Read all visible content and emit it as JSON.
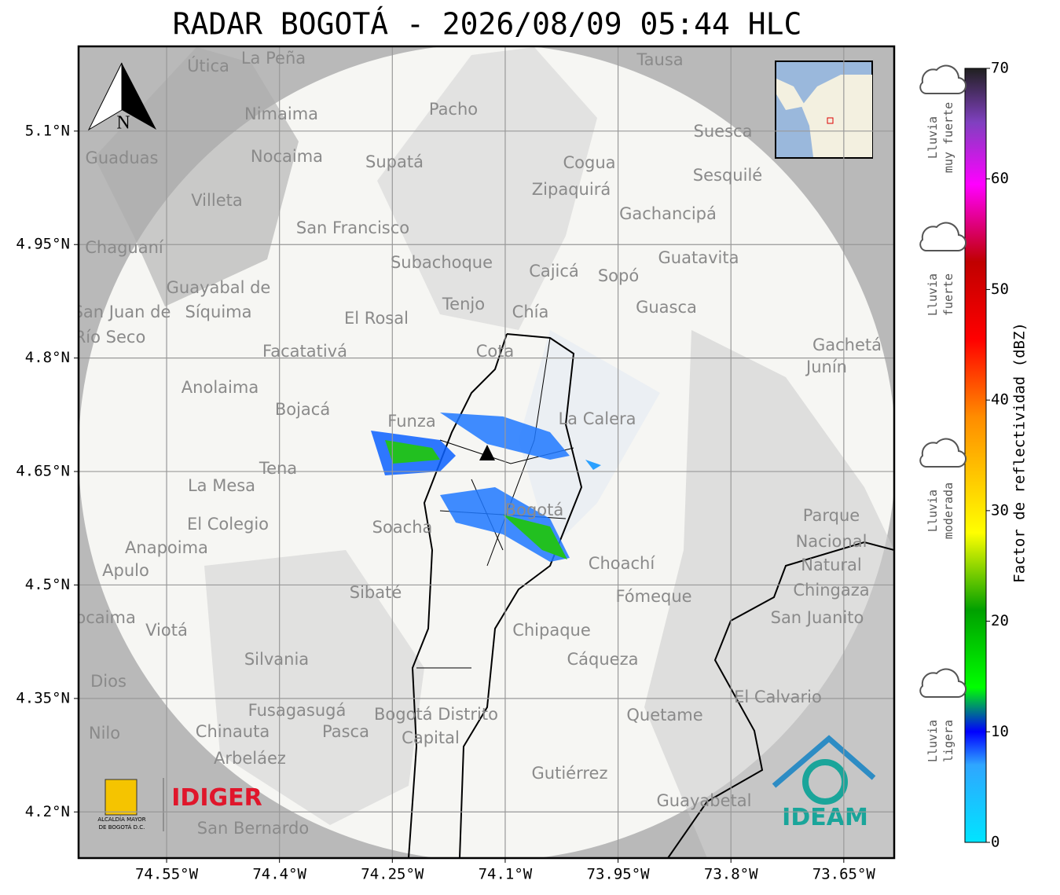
{
  "title": "RADAR BOGOTÁ - 2026/08/09 05:44 HLC",
  "map": {
    "lonlim": [
      -74.667,
      -73.583
    ],
    "latlim": [
      4.139,
      5.212
    ],
    "lon_ticks": [
      {
        "value": -74.55,
        "label": "74.55°W"
      },
      {
        "value": -74.4,
        "label": "74.4°W"
      },
      {
        "value": -74.25,
        "label": "74.25°W"
      },
      {
        "value": -74.1,
        "label": "74.1°W"
      },
      {
        "value": -73.95,
        "label": "73.95°W"
      },
      {
        "value": -73.8,
        "label": "73.8°W"
      },
      {
        "value": -73.65,
        "label": "73.65°W"
      }
    ],
    "lat_ticks": [
      {
        "value": 5.1,
        "label": "5.1°N"
      },
      {
        "value": 4.95,
        "label": "4.95°N"
      },
      {
        "value": 4.8,
        "label": "4.8°N"
      },
      {
        "value": 4.65,
        "label": "4.65°N"
      },
      {
        "value": 4.5,
        "label": "4.5°N"
      },
      {
        "value": 4.35,
        "label": "4.35°N"
      },
      {
        "value": 4.2,
        "label": "4.2°N"
      }
    ],
    "north": "N",
    "places": [
      "La Peña",
      "Útica",
      "Tausa",
      "Pacho",
      "Nimaima",
      "Guaduas",
      "Nocaima",
      "Supatá",
      "Suesca",
      "Cogua",
      "Sesquilé",
      "Zipaquirá",
      "Villeta",
      "Gachancipá",
      "San Francisco",
      "Chaguaní",
      "Guatavita",
      "Subachoque",
      "Cajicá",
      "Sopó",
      "Guayabal de",
      "Síquima",
      "Tenjo",
      "Chía",
      "Guasca",
      "San Juan de",
      "Río Seco",
      "El Rosal",
      "Gachetá",
      "Junín",
      "Facatativá",
      "Cota",
      "Anolaima",
      "Bojacá",
      "Funza",
      "La Calera",
      "Tena",
      "La Mesa",
      "Parque",
      "Nacional",
      "Natural",
      "Chingaza",
      "El Colegio",
      "Soacha",
      "Bogotá",
      "Anapoima",
      "Apulo",
      "Choachí",
      "Sibaté",
      "Fómeque",
      "San Juanito",
      "Tocaima",
      "Viotá",
      "Chipaque",
      "Silvania",
      "Cáqueza",
      "Dios",
      "El Calvario",
      "Fusagasugá",
      "Bogotá Distrito",
      "Capital",
      "Quetame",
      "Nilo",
      "Chinauta",
      "Pasca",
      "Arbeláez",
      "Gutiérrez",
      "Guayabetal",
      "San Bernardo"
    ]
  },
  "logos": {
    "alcaldia": [
      "ALCALDÍA MAYOR",
      "DE BOGOTÁ D.C."
    ],
    "idiger": "IDIGER",
    "ideam": "IDEAM"
  },
  "colorbar": {
    "label": "Factor de reflectividad (dBZ)",
    "lim": [
      0,
      70
    ],
    "ticks": [
      0,
      10,
      20,
      30,
      40,
      50,
      60,
      70
    ],
    "rain": [
      {
        "lines": [
          "Lluvia",
          "muy fuerte"
        ]
      },
      {
        "lines": [
          "Lluvia",
          "fuerte"
        ]
      },
      {
        "lines": [
          "Lluvia",
          "moderada"
        ]
      },
      {
        "lines": [
          "Lluvia",
          "ligera"
        ]
      }
    ]
  }
}
